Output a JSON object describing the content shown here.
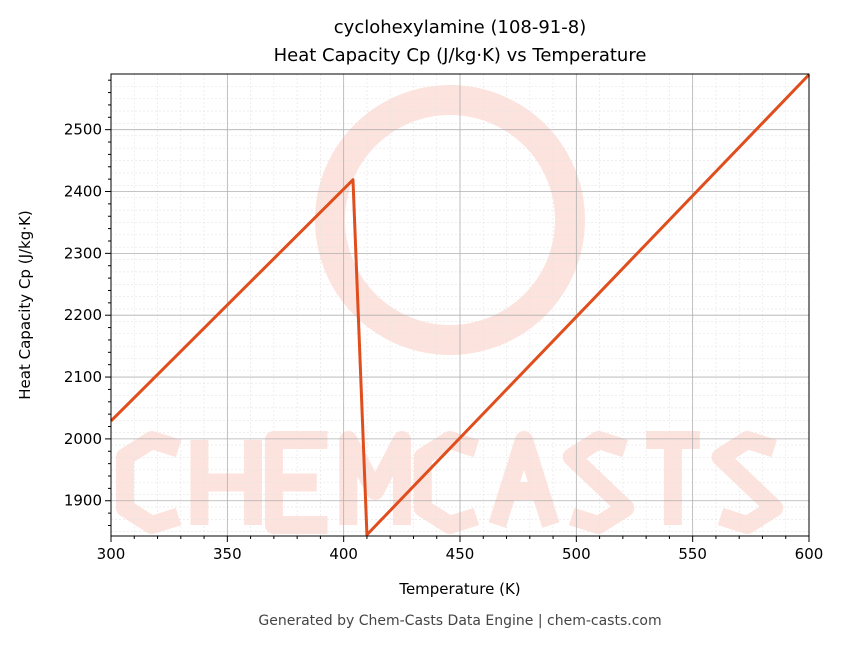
{
  "chart_data": {
    "type": "line",
    "title": "cyclohexylamine (108-91-8)",
    "subtitle": "Heat Capacity Cp (J/kg·K) vs Temperature",
    "xlabel": "Temperature (K)",
    "ylabel": "Heat Capacity Cp (J/kg·K)",
    "xlim": [
      300,
      600
    ],
    "ylim": [
      1843,
      2590
    ],
    "xticks": [
      300,
      350,
      400,
      450,
      500,
      550,
      600
    ],
    "yticks": [
      1900,
      2000,
      2100,
      2200,
      2300,
      2400,
      2500
    ],
    "grid": true,
    "series": [
      {
        "color": "#e04e1d",
        "x": [
          300,
          404,
          410,
          600
        ],
        "y": [
          2029,
          2419,
          1845,
          2589
        ]
      }
    ],
    "watermark": "CHEMCASTS"
  },
  "footer": "Generated by Chem-Casts Data Engine | chem-casts.com"
}
